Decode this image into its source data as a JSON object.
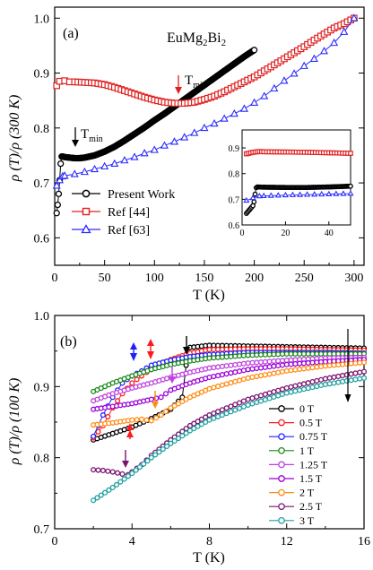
{
  "colors": {
    "present_work": "#000000",
    "ref44": "#e02020",
    "ref63": "#2a2aff",
    "field_0T": "#000000",
    "field_0_5T": "#ff1a1a",
    "field_0_75T": "#1f1fff",
    "field_1T": "#1a8a1a",
    "field_1_25T": "#c040e0",
    "field_1_5T": "#9a00d8",
    "field_2T": "#ff8c14",
    "field_2_5T": "#7a1470",
    "field_3T": "#20a0a0"
  },
  "chart_data": [
    {
      "type": "line",
      "panel_label": "(a)",
      "title": "EuMg2Bi2",
      "title_parts": {
        "main": "EuMg",
        "sub1": "2",
        "mid": "Bi",
        "sub2": "2"
      },
      "xlabel": "T (K)",
      "ylabel": "ρ (T)/ρ (300 K)",
      "xlim": [
        0,
        310
      ],
      "ylim": [
        0.55,
        1.02
      ],
      "xticks": [
        "0",
        "50",
        "100",
        "150",
        "200",
        "250",
        "300"
      ],
      "yticks": [
        "0.6",
        "0.7",
        "0.8",
        "0.9",
        "1.0"
      ],
      "legend_position": "lower-left",
      "annotations": [
        {
          "text": "T",
          "sub": "min",
          "color": "#000000",
          "at_x": 22,
          "at_y": 0.752
        },
        {
          "text": "T",
          "sub": "min",
          "color": "#e02020",
          "at_x": 128,
          "at_y": 0.848
        }
      ],
      "series": [
        {
          "name": "Present Work",
          "marker": "circle",
          "x": [
            2,
            3,
            4,
            5,
            6,
            7,
            8,
            10,
            15,
            20,
            25,
            30,
            40,
            50,
            60,
            70,
            80,
            90,
            100,
            110,
            120,
            130,
            140,
            150,
            160,
            170,
            180,
            190,
            200
          ],
          "y": [
            0.645,
            0.66,
            0.68,
            0.705,
            0.735,
            0.748,
            0.748,
            0.747,
            0.746,
            0.745,
            0.745,
            0.746,
            0.75,
            0.757,
            0.766,
            0.777,
            0.789,
            0.801,
            0.814,
            0.826,
            0.839,
            0.852,
            0.865,
            0.878,
            0.891,
            0.904,
            0.917,
            0.93,
            0.942
          ]
        },
        {
          "name": "Ref [44]",
          "marker": "square",
          "x": [
            2,
            5,
            10,
            15,
            20,
            30,
            40,
            50,
            60,
            70,
            80,
            90,
            100,
            110,
            120,
            130,
            140,
            150,
            160,
            170,
            180,
            190,
            200,
            210,
            220,
            230,
            240,
            250,
            260,
            270,
            280,
            290,
            300
          ],
          "y": [
            0.877,
            0.885,
            0.886,
            0.884,
            0.884,
            0.883,
            0.882,
            0.879,
            0.874,
            0.868,
            0.862,
            0.856,
            0.851,
            0.847,
            0.845,
            0.845,
            0.847,
            0.852,
            0.858,
            0.866,
            0.875,
            0.884,
            0.893,
            0.904,
            0.915,
            0.926,
            0.937,
            0.948,
            0.96,
            0.971,
            0.982,
            0.99,
            1.0
          ]
        },
        {
          "name": "Ref [63]",
          "marker": "triangle",
          "x": [
            2,
            5,
            8,
            10,
            20,
            30,
            40,
            50,
            60,
            70,
            80,
            90,
            100,
            110,
            120,
            130,
            140,
            150,
            160,
            170,
            180,
            190,
            200,
            210,
            220,
            230,
            240,
            250,
            260,
            270,
            280,
            290,
            300
          ],
          "y": [
            0.695,
            0.705,
            0.712,
            0.713,
            0.716,
            0.72,
            0.725,
            0.73,
            0.735,
            0.741,
            0.747,
            0.754,
            0.76,
            0.768,
            0.775,
            0.783,
            0.791,
            0.8,
            0.808,
            0.817,
            0.826,
            0.835,
            0.846,
            0.858,
            0.872,
            0.886,
            0.899,
            0.913,
            0.926,
            0.94,
            0.955,
            0.975,
            1.0
          ]
        }
      ]
    },
    {
      "type": "line",
      "panel_label": "inset",
      "xlim": [
        0,
        50
      ],
      "ylim": [
        0.6,
        0.97
      ],
      "xticks": [
        "0",
        "20",
        "40"
      ],
      "yticks": [
        "0.6",
        "0.7",
        "0.8",
        "0.9"
      ],
      "series": [
        {
          "name": "Present Work",
          "marker": "circle",
          "x": [
            2,
            3,
            4,
            5,
            5.5,
            6,
            6.5,
            7,
            10,
            20,
            30,
            40,
            50
          ],
          "y": [
            0.645,
            0.655,
            0.665,
            0.675,
            0.69,
            0.72,
            0.745,
            0.748,
            0.747,
            0.746,
            0.746,
            0.748,
            0.751
          ]
        },
        {
          "name": "Ref [44]",
          "marker": "square",
          "x": [
            2,
            5,
            8,
            10,
            20,
            30,
            40,
            50
          ],
          "y": [
            0.877,
            0.883,
            0.886,
            0.885,
            0.884,
            0.883,
            0.881,
            0.879
          ]
        },
        {
          "name": "Ref [63]",
          "marker": "triangle",
          "x": [
            2,
            5,
            8,
            10,
            20,
            30,
            40,
            50
          ],
          "y": [
            0.695,
            0.705,
            0.712,
            0.713,
            0.716,
            0.718,
            0.72,
            0.722
          ]
        }
      ]
    },
    {
      "type": "line",
      "panel_label": "(b)",
      "xlabel": "T (K)",
      "ylabel": "ρ (T)/ρ (100 K)",
      "xlim": [
        0,
        16
      ],
      "ylim": [
        0.7,
        1.0
      ],
      "xticks": [
        "0",
        "4",
        "8",
        "12",
        "16"
      ],
      "yticks": [
        "0.7",
        "0.8",
        "0.9",
        "1.0"
      ],
      "legend_position": "lower-right",
      "annotation": "arrow pointing toward increasing field",
      "series": [
        {
          "name": "0 T",
          "marker": "circle",
          "x": [
            2,
            3,
            4,
            5,
            6,
            6.6,
            6.8,
            7,
            8,
            10,
            12,
            14,
            16
          ],
          "y": [
            0.825,
            0.834,
            0.843,
            0.855,
            0.868,
            0.885,
            0.93,
            0.955,
            0.958,
            0.957,
            0.956,
            0.955,
            0.954
          ]
        },
        {
          "name": "0.5 T",
          "marker": "circle",
          "x": [
            2,
            2.5,
            3,
            3.5,
            4,
            4.5,
            5,
            5.5,
            6,
            7,
            8,
            10,
            12,
            14,
            16
          ],
          "y": [
            0.828,
            0.845,
            0.87,
            0.89,
            0.905,
            0.915,
            0.925,
            0.932,
            0.938,
            0.947,
            0.952,
            0.953,
            0.953,
            0.952,
            0.951
          ]
        },
        {
          "name": "0.75 T",
          "marker": "circle",
          "x": [
            2,
            2.5,
            3,
            3.5,
            4,
            4.5,
            5,
            6,
            7,
            8,
            10,
            12,
            14,
            16
          ],
          "y": [
            0.83,
            0.86,
            0.885,
            0.905,
            0.915,
            0.922,
            0.93,
            0.937,
            0.942,
            0.945,
            0.948,
            0.948,
            0.948,
            0.947
          ]
        },
        {
          "name": "1 T",
          "marker": "circle",
          "x": [
            2,
            3,
            4,
            5,
            6,
            7,
            8,
            10,
            12,
            14,
            16
          ],
          "y": [
            0.893,
            0.905,
            0.915,
            0.924,
            0.931,
            0.936,
            0.94,
            0.944,
            0.946,
            0.946,
            0.946
          ]
        },
        {
          "name": "1.25 T",
          "marker": "circle",
          "x": [
            2,
            3,
            4,
            5,
            6,
            7,
            8,
            10,
            12,
            14,
            16
          ],
          "y": [
            0.88,
            0.89,
            0.898,
            0.905,
            0.913,
            0.92,
            0.926,
            0.933,
            0.937,
            0.94,
            0.941
          ]
        },
        {
          "name": "1.5 T",
          "marker": "circle",
          "x": [
            2,
            3,
            4,
            5,
            5.5,
            6,
            7,
            8,
            10,
            12,
            14,
            16
          ],
          "y": [
            0.868,
            0.872,
            0.876,
            0.882,
            0.885,
            0.895,
            0.905,
            0.913,
            0.924,
            0.931,
            0.935,
            0.938
          ]
        },
        {
          "name": "2 T",
          "marker": "circle",
          "x": [
            2,
            3,
            4,
            4.5,
            5,
            5.5,
            6,
            7,
            8,
            10,
            12,
            14,
            16
          ],
          "y": [
            0.846,
            0.849,
            0.853,
            0.854,
            0.852,
            0.86,
            0.87,
            0.885,
            0.897,
            0.912,
            0.922,
            0.929,
            0.934
          ]
        },
        {
          "name": "2.5 T",
          "marker": "circle",
          "x": [
            2,
            2.5,
            3,
            3.5,
            3.8,
            4,
            4.5,
            5,
            6,
            7,
            8,
            10,
            12,
            14,
            16
          ],
          "y": [
            0.783,
            0.782,
            0.78,
            0.777,
            0.776,
            0.78,
            0.79,
            0.803,
            0.825,
            0.845,
            0.86,
            0.882,
            0.898,
            0.911,
            0.921
          ]
        },
        {
          "name": "3 T",
          "marker": "circle",
          "x": [
            2,
            3,
            4,
            5,
            6,
            7,
            8,
            10,
            12,
            14,
            16
          ],
          "y": [
            0.74,
            0.758,
            0.778,
            0.8,
            0.82,
            0.838,
            0.853,
            0.874,
            0.891,
            0.903,
            0.912
          ]
        }
      ]
    }
  ]
}
